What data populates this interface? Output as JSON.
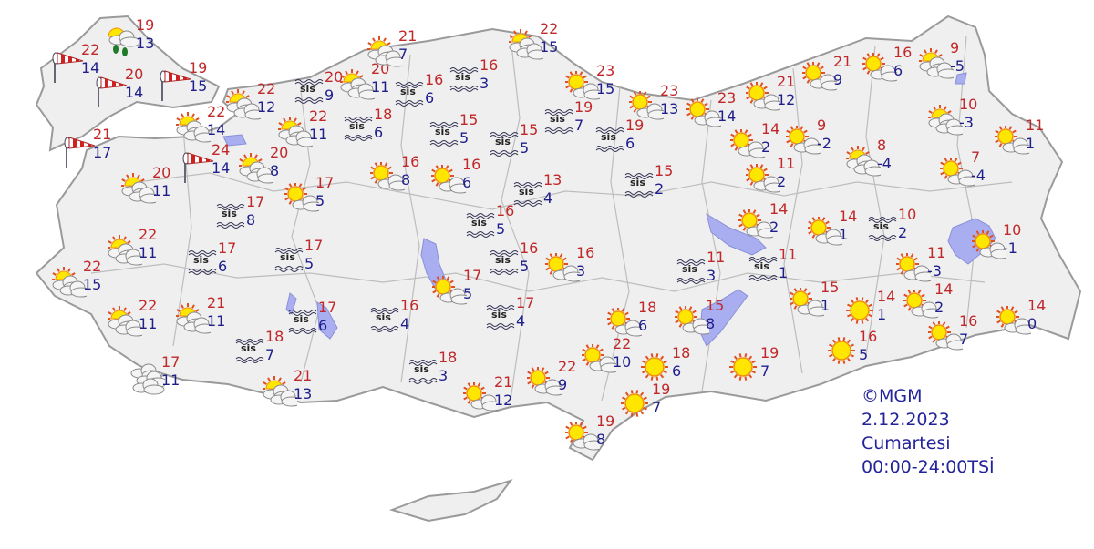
{
  "legend": {
    "copyright": "©MGM",
    "date": "2.12.2023",
    "day": "Cumartesi",
    "period": "00:00-24:00TSİ"
  },
  "fog_label": "sis",
  "colors": {
    "max_temp": "#c0282a",
    "min_temp": "#1e1e8c",
    "land": "#efefef",
    "lake": "#a9aef0",
    "border": "#9a9a9a"
  },
  "stations": [
    {
      "icon": "rain",
      "max": "19",
      "min": "13"
    },
    {
      "icon": "wind",
      "max": "22",
      "min": "14"
    },
    {
      "icon": "wind",
      "max": "20",
      "min": "14"
    },
    {
      "icon": "wind",
      "max": "19",
      "min": "15"
    },
    {
      "icon": "wind",
      "max": "21",
      "min": "17"
    },
    {
      "icon": "wind",
      "max": "24",
      "min": "14"
    },
    {
      "icon": "partly-cloudy",
      "max": "22",
      "min": "14"
    },
    {
      "icon": "partly-cloudy",
      "max": "22",
      "min": "12"
    },
    {
      "icon": "partly-cloudy",
      "max": "22",
      "min": "11"
    },
    {
      "icon": "partly-cloudy",
      "max": "20",
      "min": "8"
    },
    {
      "icon": "partly-cloudy",
      "max": "20",
      "min": "11"
    },
    {
      "icon": "fog",
      "max": "20",
      "min": "9"
    },
    {
      "icon": "partly-cloudy",
      "max": "20",
      "min": "11"
    },
    {
      "icon": "partly-cloudy",
      "max": "21",
      "min": "7"
    },
    {
      "icon": "fog",
      "max": "16",
      "min": "6"
    },
    {
      "icon": "fog",
      "max": "16",
      "min": "3"
    },
    {
      "icon": "partly-cloudy",
      "max": "22",
      "min": "15"
    },
    {
      "icon": "mostly-sunny",
      "max": "23",
      "min": "15"
    },
    {
      "icon": "mostly-sunny",
      "max": "23",
      "min": "13"
    },
    {
      "icon": "mostly-sunny",
      "max": "23",
      "min": "14"
    },
    {
      "icon": "mostly-sunny",
      "max": "21",
      "min": "12"
    },
    {
      "icon": "mostly-sunny",
      "max": "21",
      "min": "9"
    },
    {
      "icon": "mostly-sunny",
      "max": "16",
      "min": "6"
    },
    {
      "icon": "partly-cloudy",
      "max": "9",
      "min": "-5"
    },
    {
      "icon": "fog",
      "max": "18",
      "min": "6"
    },
    {
      "icon": "fog",
      "max": "15",
      "min": "5"
    },
    {
      "icon": "fog",
      "max": "15",
      "min": "5"
    },
    {
      "icon": "fog",
      "max": "19",
      "min": "7"
    },
    {
      "icon": "fog",
      "max": "19",
      "min": "6"
    },
    {
      "icon": "mostly-sunny",
      "max": "14",
      "min": "2"
    },
    {
      "icon": "mostly-sunny",
      "max": "9",
      "min": "-2"
    },
    {
      "icon": "partly-cloudy",
      "max": "8",
      "min": "-4"
    },
    {
      "icon": "partly-cloudy",
      "max": "10",
      "min": "-3"
    },
    {
      "icon": "mostly-sunny",
      "max": "11",
      "min": "1"
    },
    {
      "icon": "mostly-sunny",
      "max": "7",
      "min": "-4"
    },
    {
      "icon": "mostly-sunny",
      "max": "11",
      "min": "2"
    },
    {
      "icon": "mostly-sunny",
      "max": "16",
      "min": "8"
    },
    {
      "icon": "mostly-sunny",
      "max": "16",
      "min": "6"
    },
    {
      "icon": "mostly-sunny",
      "max": "17",
      "min": "5"
    },
    {
      "icon": "fog",
      "max": "17",
      "min": "8"
    },
    {
      "icon": "fog",
      "max": "13",
      "min": "4"
    },
    {
      "icon": "fog",
      "max": "15",
      "min": "2"
    },
    {
      "icon": "fog",
      "max": "16",
      "min": "5"
    },
    {
      "icon": "mostly-sunny",
      "max": "14",
      "min": "2"
    },
    {
      "icon": "mostly-sunny",
      "max": "14",
      "min": "1"
    },
    {
      "icon": "fog",
      "max": "10",
      "min": "2"
    },
    {
      "icon": "mostly-sunny",
      "max": "10",
      "min": "-1"
    },
    {
      "icon": "partly-cloudy",
      "max": "22",
      "min": "11"
    },
    {
      "icon": "fog",
      "max": "17",
      "min": "6"
    },
    {
      "icon": "fog",
      "max": "17",
      "min": "5"
    },
    {
      "icon": "partly-cloudy",
      "max": "22",
      "min": "15"
    },
    {
      "icon": "fog",
      "max": "16",
      "min": "5"
    },
    {
      "icon": "mostly-sunny",
      "max": "16",
      "min": "3"
    },
    {
      "icon": "mostly-sunny",
      "max": "17",
      "min": "5"
    },
    {
      "icon": "fog",
      "max": "11",
      "min": "3"
    },
    {
      "icon": "fog",
      "max": "11",
      "min": "1"
    },
    {
      "icon": "mostly-sunny",
      "max": "11",
      "min": "-3"
    },
    {
      "icon": "partly-cloudy",
      "max": "22",
      "min": "11"
    },
    {
      "icon": "partly-cloudy",
      "max": "21",
      "min": "11"
    },
    {
      "icon": "fog",
      "max": "17",
      "min": "6"
    },
    {
      "icon": "fog",
      "max": "16",
      "min": "4"
    },
    {
      "icon": "fog",
      "max": "17",
      "min": "4"
    },
    {
      "icon": "mostly-sunny",
      "max": "15",
      "min": "1"
    },
    {
      "icon": "sunny",
      "max": "14",
      "min": "1"
    },
    {
      "icon": "mostly-sunny",
      "max": "14",
      "min": "2"
    },
    {
      "icon": "mostly-sunny",
      "max": "14",
      "min": "0"
    },
    {
      "icon": "mostly-sunny",
      "max": "18",
      "min": "6"
    },
    {
      "icon": "mostly-sunny",
      "max": "15",
      "min": "8"
    },
    {
      "icon": "fog",
      "max": "18",
      "min": "7"
    },
    {
      "icon": "cloudy",
      "max": "17",
      "min": "11"
    },
    {
      "icon": "fog",
      "max": "18",
      "min": "3"
    },
    {
      "icon": "mostly-sunny",
      "max": "22",
      "min": "10"
    },
    {
      "icon": "sunny",
      "max": "18",
      "min": "6"
    },
    {
      "icon": "sunny",
      "max": "19",
      "min": "7"
    },
    {
      "icon": "sunny",
      "max": "16",
      "min": "5"
    },
    {
      "icon": "mostly-sunny",
      "max": "16",
      "min": "7"
    },
    {
      "icon": "mostly-sunny",
      "max": "22",
      "min": "9"
    },
    {
      "icon": "mostly-sunny",
      "max": "21",
      "min": "12"
    },
    {
      "icon": "partly-cloudy",
      "max": "21",
      "min": "13"
    },
    {
      "icon": "sunny",
      "max": "19",
      "min": "7"
    },
    {
      "icon": "mostly-sunny",
      "max": "19",
      "min": "8"
    }
  ]
}
